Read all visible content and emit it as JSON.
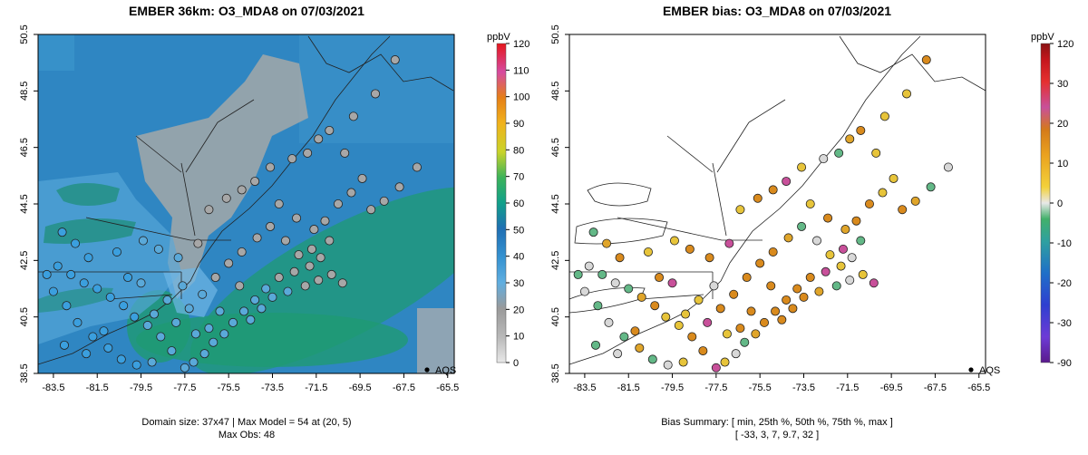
{
  "colors": {
    "ocean": "#2f86c2",
    "ocean_deep": "#1f6fb1",
    "ocean_green": "#1f9a73",
    "land_gray": "#9da6aa",
    "land_light_blue": "#58a8d8",
    "marker_gray": "#a7a7a7",
    "marker_blue": "#3b9fde",
    "bias_orange": "#d98a1d",
    "bias_yellow": "#e7c43a",
    "bias_green": "#63b887",
    "bias_white": "#d8d8d8"
  },
  "chart_data": [
    {
      "type": "heatmap",
      "title": "EMBER 36km: O3_MDA8 on 07/03/2021",
      "xlim": [
        -84.2,
        -65.2
      ],
      "ylim": [
        38.5,
        50.5
      ],
      "x_ticks": [
        "-83.5",
        "-81.5",
        "-79.5",
        "-77.5",
        "-75.5",
        "-73.5",
        "-71.5",
        "-69.5",
        "-67.5",
        "-65.5"
      ],
      "y_ticks": [
        "38.5",
        "40.5",
        "42.5",
        "44.5",
        "46.5",
        "48.5",
        "50.5"
      ],
      "colorbar": {
        "label": "ppbV",
        "ticks": [
          "0",
          "10",
          "20",
          "30",
          "40",
          "50",
          "60",
          "70",
          "80",
          "90",
          "100",
          "110",
          "120"
        ],
        "range": [
          0,
          120
        ]
      },
      "legend": {
        "label": "AQS",
        "placement": "bottom-right"
      },
      "caption_line1": "Domain size: 37x47 | Max Model = 54 at (20, 5)",
      "caption_line2": "Max Obs: 48",
      "domain_size": "37x47",
      "max_model": 54,
      "max_model_cell": [
        20,
        5
      ],
      "max_obs": 48
    },
    {
      "type": "scatter",
      "title": "EMBER bias: O3_MDA8 on 07/03/2021",
      "xlim": [
        -84.2,
        -65.2
      ],
      "ylim": [
        38.5,
        50.5
      ],
      "x_ticks": [
        "-83.5",
        "-81.5",
        "-79.5",
        "-77.5",
        "-75.5",
        "-73.5",
        "-71.5",
        "-69.5",
        "-67.5",
        "-65.5"
      ],
      "y_ticks": [
        "38.5",
        "40.5",
        "42.5",
        "44.5",
        "46.5",
        "48.5",
        "50.5"
      ],
      "colorbar": {
        "label": "ppbV",
        "ticks": [
          "-90",
          "-30",
          "-20",
          "-10",
          "0",
          "10",
          "20",
          "30",
          "120"
        ],
        "range": [
          -90,
          120
        ]
      },
      "legend": {
        "label": "AQS",
        "placement": "bottom-right"
      },
      "caption_line1": "Bias Summary: [ min, 25th %, 50th %, 75th %, max ]",
      "caption_line2": "[ -33,   3,   7,   9.7,   32 ]",
      "bias_summary": {
        "min": -33,
        "p25": 3,
        "p50": 7,
        "p75": 9.7,
        "max": 32
      }
    }
  ]
}
